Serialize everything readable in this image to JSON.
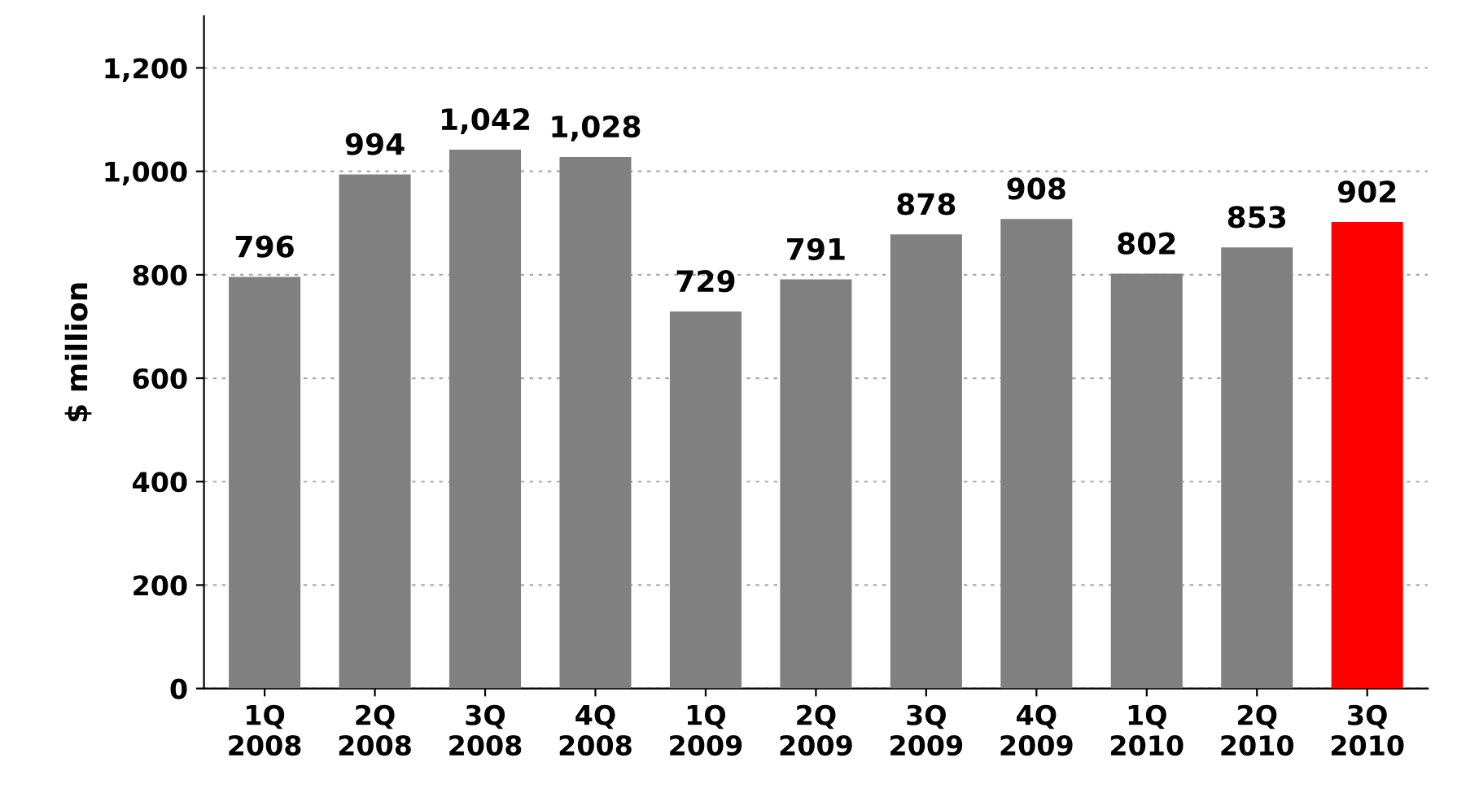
{
  "chart_data": {
    "type": "bar",
    "ylabel": "$ million",
    "categories": [
      "1Q\n2008",
      "2Q\n2008",
      "3Q\n2008",
      "4Q\n2008",
      "1Q\n2009",
      "2Q\n2009",
      "3Q\n2009",
      "4Q\n2009",
      "1Q\n2010",
      "2Q\n2010",
      "3Q\n2010"
    ],
    "values": [
      796,
      994,
      1042,
      1028,
      729,
      791,
      878,
      908,
      802,
      853,
      902
    ],
    "colors": [
      "#808080",
      "#808080",
      "#808080",
      "#808080",
      "#808080",
      "#808080",
      "#808080",
      "#808080",
      "#808080",
      "#808080",
      "#ff0000"
    ],
    "value_labels": [
      "796",
      "994",
      "1,042",
      "1,028",
      "729",
      "791",
      "878",
      "908",
      "802",
      "853",
      "902"
    ],
    "ylim": [
      0,
      1300
    ],
    "yticks": [
      0,
      {
        "value": 200,
        "label": "200"
      },
      {
        "value": 400,
        "label": "400"
      },
      {
        "value": 600,
        "label": "600"
      },
      {
        "value": 800,
        "label": "800"
      },
      {
        "value": 1000,
        "label": "1,000"
      },
      {
        "value": 1200,
        "label": "1,200"
      }
    ],
    "grid": "y"
  }
}
